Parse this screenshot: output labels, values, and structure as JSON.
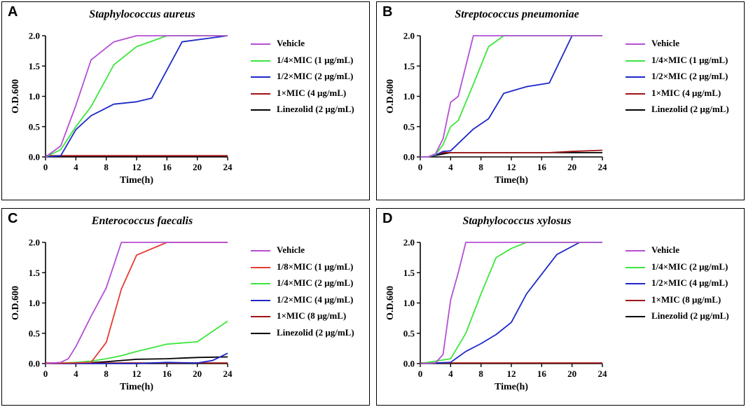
{
  "chart_data": [
    {
      "type": "line",
      "panel_label": "A",
      "title": "Staphylococcus aureus",
      "xlabel": "Time(h)",
      "ylabel": "O.D.600",
      "xlim": [
        0,
        24
      ],
      "ylim": [
        0,
        2.0
      ],
      "xticks": [
        0,
        4,
        8,
        12,
        16,
        20,
        24
      ],
      "yticks": [
        0.0,
        0.5,
        1.0,
        1.5,
        2.0
      ],
      "xtick_labels": [
        "0",
        "4",
        "8",
        "12",
        "16",
        "20",
        "24"
      ],
      "ytick_labels": [
        "0.0",
        "0.5",
        "1.0",
        "1.5",
        "2.0"
      ],
      "series": [
        {
          "name": "Vehicle",
          "color": "#b44fd4",
          "x": [
            0,
            2,
            4,
            6,
            9,
            12,
            16,
            24
          ],
          "y": [
            0,
            0.18,
            0.85,
            1.6,
            1.9,
            2.0,
            2.0,
            2.0
          ]
        },
        {
          "name": "1/4×MIC (1 μg/mL)",
          "color": "#3ce63c",
          "x": [
            0,
            2,
            4,
            6,
            9,
            12,
            16,
            24
          ],
          "y": [
            0,
            0.12,
            0.5,
            0.83,
            1.52,
            1.82,
            2.0,
            2.0
          ]
        },
        {
          "name": "1/2×MIC (2 μg/mL)",
          "color": "#1e28c8",
          "x": [
            0,
            2,
            4,
            6,
            9,
            12,
            14,
            18,
            24
          ],
          "y": [
            0,
            0.02,
            0.45,
            0.68,
            0.87,
            0.91,
            0.97,
            1.9,
            2.0
          ]
        },
        {
          "name": "1×MIC (4 μg/mL)",
          "color": "#a01414",
          "x": [
            0,
            24
          ],
          "y": [
            0.02,
            0.02
          ]
        },
        {
          "name": "Linezolid (2 μg/mL)",
          "color": "#000000",
          "x": [
            0,
            24
          ],
          "y": [
            0.01,
            0.01
          ]
        }
      ]
    },
    {
      "type": "line",
      "panel_label": "B",
      "title": "Streptococcus pneumoniae",
      "xlabel": "Time(h)",
      "ylabel": "O.D.600",
      "xlim": [
        0,
        24
      ],
      "ylim": [
        0,
        2.0
      ],
      "xticks": [
        0,
        4,
        8,
        12,
        16,
        20,
        24
      ],
      "yticks": [
        0.0,
        0.5,
        1.0,
        1.5,
        2.0
      ],
      "xtick_labels": [
        "0",
        "4",
        "8",
        "12",
        "16",
        "20",
        "24"
      ],
      "ytick_labels": [
        "0.0",
        "0.5",
        "1.0",
        "1.5",
        "2.0"
      ],
      "series": [
        {
          "name": "Vehicle",
          "color": "#b44fd4",
          "x": [
            0,
            1,
            2,
            3,
            4,
            5,
            7,
            24
          ],
          "y": [
            0,
            0,
            0.05,
            0.3,
            0.9,
            1.0,
            2.0,
            2.0
          ]
        },
        {
          "name": "1/4×MIC (1 μg/mL)",
          "color": "#3ce63c",
          "x": [
            0,
            1,
            2,
            3,
            4,
            5,
            7,
            9,
            11,
            24
          ],
          "y": [
            0,
            0,
            0.04,
            0.2,
            0.5,
            0.6,
            1.2,
            1.82,
            2.0,
            2.0
          ]
        },
        {
          "name": "1/2×MIC (2 μg/mL)",
          "color": "#1e28c8",
          "x": [
            0,
            1,
            2,
            3,
            4,
            7,
            9,
            11,
            14,
            17,
            20,
            24
          ],
          "y": [
            0,
            0,
            0.03,
            0.09,
            0.1,
            0.46,
            0.63,
            1.05,
            1.16,
            1.22,
            2.0,
            2.0
          ]
        },
        {
          "name": "1×MIC (4 μg/mL)",
          "color": "#a01414",
          "x": [
            0,
            1,
            3,
            4,
            17,
            20,
            24
          ],
          "y": [
            0,
            0,
            0.07,
            0.07,
            0.07,
            0.09,
            0.11
          ]
        },
        {
          "name": "Linezolid (2 μg/mL)",
          "color": "#000000",
          "x": [
            0,
            1,
            3,
            4,
            24
          ],
          "y": [
            0,
            0,
            0.05,
            0.07,
            0.07
          ]
        }
      ]
    },
    {
      "type": "line",
      "panel_label": "C",
      "title": "Enterococcus  faecalis",
      "xlabel": "Time(h)",
      "ylabel": "O.D.600",
      "xlim": [
        0,
        24
      ],
      "ylim": [
        0,
        2.0
      ],
      "xticks": [
        0,
        4,
        8,
        12,
        16,
        20,
        24
      ],
      "yticks": [
        0.0,
        0.5,
        1.0,
        1.5,
        2.0
      ],
      "xtick_labels": [
        "0",
        "4",
        "8",
        "12",
        "16",
        "20",
        "24"
      ],
      "ytick_labels": [
        "0.0",
        "0.5",
        "1.0",
        "1.5",
        "2.0"
      ],
      "series": [
        {
          "name": "Vehicle",
          "color": "#b44fd4",
          "x": [
            0,
            2,
            3,
            4,
            6,
            8,
            10,
            24
          ],
          "y": [
            0,
            0.02,
            0.08,
            0.28,
            0.78,
            1.25,
            2.0,
            2.0
          ]
        },
        {
          "name": "1/8×MIC (1 μg/mL)",
          "color": "#e63c32",
          "x": [
            0,
            6,
            8,
            10,
            12,
            16,
            24
          ],
          "y": [
            0,
            0.02,
            0.35,
            1.23,
            1.79,
            2.0,
            2.0
          ]
        },
        {
          "name": "1/4×MIC (2 μg/mL)",
          "color": "#3ce63c",
          "x": [
            0,
            4,
            6,
            8,
            10,
            12,
            16,
            20,
            24
          ],
          "y": [
            0,
            0.02,
            0.04,
            0.08,
            0.13,
            0.2,
            0.32,
            0.36,
            0.7
          ]
        },
        {
          "name": "1/2×MIC (4 μg/mL)",
          "color": "#1e28c8",
          "x": [
            0,
            12,
            16,
            20,
            22,
            24
          ],
          "y": [
            0,
            0,
            0.02,
            0.01,
            0.05,
            0.17
          ]
        },
        {
          "name": "1×MIC (8 μg/mL)",
          "color": "#a01414",
          "x": [
            0,
            24
          ],
          "y": [
            0.01,
            0.01
          ]
        },
        {
          "name": "Linezolid (2 μg/mL)",
          "color": "#000000",
          "x": [
            0,
            4,
            8,
            12,
            16,
            20,
            24
          ],
          "y": [
            0,
            0,
            0.03,
            0.07,
            0.08,
            0.1,
            0.11
          ]
        }
      ]
    },
    {
      "type": "line",
      "panel_label": "D",
      "title": "Staphylococcus xylosus",
      "xlabel": "Time(h)",
      "ylabel": "O.D.600",
      "xlim": [
        0,
        24
      ],
      "ylim": [
        0,
        2.0
      ],
      "xticks": [
        0,
        4,
        8,
        12,
        16,
        20,
        24
      ],
      "yticks": [
        0.0,
        0.5,
        1.0,
        1.5,
        2.0
      ],
      "xtick_labels": [
        "0",
        "4",
        "8",
        "12",
        "16",
        "20",
        "24"
      ],
      "ytick_labels": [
        "0.0",
        "0.5",
        "1.0",
        "1.5",
        "2.0"
      ],
      "series": [
        {
          "name": "Vehicle",
          "color": "#b44fd4",
          "x": [
            0,
            2,
            3,
            4,
            5,
            6,
            24
          ],
          "y": [
            0,
            0.01,
            0.15,
            1.05,
            1.5,
            2.0,
            2.0
          ]
        },
        {
          "name": "1/4×MIC (2 μg/mL)",
          "color": "#3ce63c",
          "x": [
            0,
            4,
            6,
            8,
            10,
            12,
            14,
            24
          ],
          "y": [
            0,
            0.08,
            0.5,
            1.15,
            1.75,
            1.9,
            2.0,
            2.0
          ]
        },
        {
          "name": "1/2×MIC (4 μg/mL)",
          "color": "#1e28c8",
          "x": [
            0,
            4,
            6,
            8,
            10,
            12,
            14,
            18,
            21,
            24
          ],
          "y": [
            0,
            0.02,
            0.2,
            0.33,
            0.48,
            0.68,
            1.15,
            1.8,
            2.0,
            2.0
          ]
        },
        {
          "name": "1×MIC (8 μg/mL)",
          "color": "#a01414",
          "x": [
            0,
            24
          ],
          "y": [
            0.01,
            0.01
          ]
        },
        {
          "name": "Linezolid (2 μg/mL)",
          "color": "#000000",
          "x": [
            0,
            24
          ],
          "y": [
            0.005,
            0.005
          ]
        }
      ]
    }
  ]
}
